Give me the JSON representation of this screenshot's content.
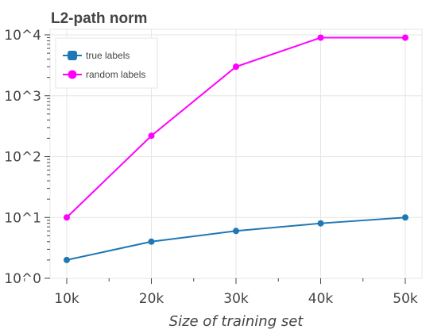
{
  "chart_data": {
    "type": "line",
    "title": "L2-path norm",
    "xlabel": "Size of training set",
    "ylabel": "",
    "x": [
      10000,
      20000,
      30000,
      40000,
      50000
    ],
    "xticks": [
      10000,
      20000,
      30000,
      40000,
      50000
    ],
    "xtick_labels": [
      "10k",
      "20k",
      "30k",
      "40k",
      "50k"
    ],
    "yscale": "log",
    "ylim": [
      1,
      10000
    ],
    "yticks": [
      1,
      10,
      100,
      1000,
      10000
    ],
    "ytick_labels": [
      "10^0",
      "10^1",
      "10^2",
      "10^3",
      "10^4"
    ],
    "grid": true,
    "legend_position": "top-left",
    "series": [
      {
        "name": "true labels",
        "color": "#1f77b4",
        "values": [
          2,
          4,
          6,
          8,
          10
        ]
      },
      {
        "name": "random labels",
        "color": "#ff00ff",
        "values": [
          10,
          220,
          3000,
          9000,
          9000
        ]
      }
    ]
  }
}
